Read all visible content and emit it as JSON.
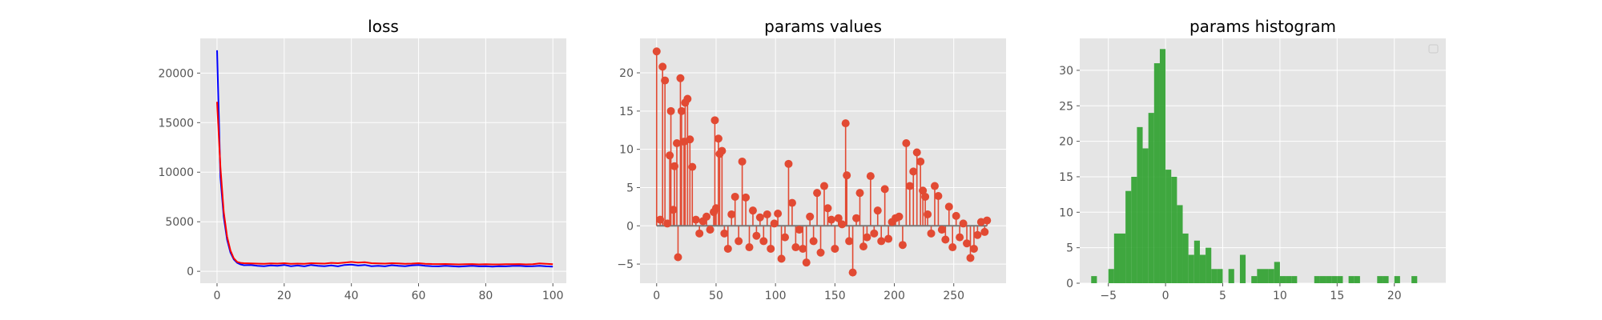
{
  "colors": {
    "axes_bg": "#e5e5e5",
    "grid": "#ffffff",
    "tick": "#555555",
    "loss_train": "#0000ff",
    "loss_val": "#ff0000",
    "stem": "#e24a33",
    "baseline": "#777777",
    "hist": "#2ca02c"
  },
  "chart_data": [
    {
      "type": "line",
      "title": "loss",
      "xlabel": "",
      "ylabel": "",
      "xlim": [
        -5,
        104
      ],
      "ylim": [
        -1200,
        23500
      ],
      "xticks": [
        0,
        20,
        40,
        60,
        80,
        100
      ],
      "yticks": [
        0,
        5000,
        10000,
        15000,
        20000
      ],
      "grid": true,
      "series": [
        {
          "color": "#0000ff",
          "x": [
            0,
            1,
            2,
            3,
            4,
            5,
            6,
            7,
            8,
            10,
            12,
            14,
            16,
            18,
            20,
            22,
            24,
            26,
            28,
            30,
            32,
            34,
            36,
            38,
            40,
            42,
            44,
            46,
            48,
            50,
            52,
            54,
            56,
            58,
            60,
            62,
            64,
            66,
            68,
            70,
            72,
            74,
            76,
            78,
            80,
            82,
            84,
            86,
            88,
            90,
            92,
            94,
            96,
            98,
            100
          ],
          "values": [
            22300,
            9500,
            5500,
            3200,
            1900,
            1200,
            850,
            700,
            620,
            640,
            560,
            520,
            600,
            560,
            640,
            520,
            580,
            500,
            640,
            560,
            520,
            600,
            500,
            640,
            680,
            580,
            640,
            520,
            560,
            500,
            620,
            560,
            520,
            600,
            640,
            560,
            520,
            500,
            560,
            520,
            480,
            520,
            560,
            500,
            520,
            480,
            520,
            500,
            540,
            560,
            500,
            520,
            560,
            500,
            480
          ]
        },
        {
          "color": "#ff0000",
          "x": [
            0,
            1,
            2,
            3,
            4,
            5,
            6,
            7,
            8,
            10,
            12,
            14,
            16,
            18,
            20,
            22,
            24,
            26,
            28,
            30,
            32,
            34,
            36,
            38,
            40,
            42,
            44,
            46,
            48,
            50,
            52,
            54,
            56,
            58,
            60,
            62,
            64,
            66,
            68,
            70,
            72,
            74,
            76,
            78,
            80,
            82,
            84,
            86,
            88,
            90,
            92,
            94,
            96,
            98,
            100
          ],
          "values": [
            17100,
            10500,
            6000,
            3500,
            2100,
            1300,
            950,
            850,
            820,
            800,
            780,
            760,
            800,
            780,
            820,
            760,
            780,
            760,
            820,
            800,
            780,
            850,
            820,
            880,
            950,
            880,
            920,
            820,
            800,
            780,
            820,
            790,
            760,
            780,
            820,
            760,
            740,
            730,
            740,
            720,
            700,
            720,
            730,
            700,
            720,
            700,
            700,
            710,
            720,
            730,
            700,
            720,
            800,
            760,
            720
          ]
        }
      ]
    },
    {
      "type": "stem",
      "title": "params values",
      "xlabel": "",
      "ylabel": "",
      "xlim": [
        -14,
        294
      ],
      "ylim": [
        -7.5,
        24.5
      ],
      "xticks": [
        0,
        50,
        100,
        150,
        200,
        250
      ],
      "yticks": [
        -5,
        0,
        5,
        10,
        15,
        20
      ],
      "grid": true,
      "x": [
        0,
        3,
        5,
        7,
        9,
        11,
        12,
        14,
        15,
        17,
        18,
        20,
        21,
        23,
        24,
        26,
        28,
        30,
        33,
        36,
        39,
        42,
        45,
        48,
        49,
        50,
        52,
        53,
        55,
        57,
        60,
        63,
        66,
        69,
        72,
        75,
        78,
        81,
        84,
        87,
        90,
        93,
        96,
        99,
        102,
        105,
        108,
        111,
        114,
        117,
        120,
        123,
        126,
        129,
        132,
        135,
        138,
        141,
        144,
        147,
        150,
        153,
        156,
        159,
        160,
        162,
        165,
        168,
        171,
        174,
        177,
        180,
        183,
        186,
        189,
        192,
        195,
        198,
        201,
        204,
        207,
        210,
        213,
        216,
        219,
        222,
        224,
        226,
        228,
        231,
        234,
        237,
        240,
        243,
        246,
        249,
        252,
        255,
        258,
        261,
        264,
        267,
        270,
        273,
        276,
        278
      ],
      "values": [
        22.8,
        0.8,
        20.8,
        19.0,
        0.3,
        9.2,
        15.0,
        2.1,
        7.8,
        10.8,
        -4.1,
        19.3,
        15.0,
        11.0,
        16.1,
        16.6,
        11.3,
        7.7,
        0.8,
        -1.0,
        0.6,
        1.2,
        -0.5,
        1.8,
        13.8,
        2.3,
        11.4,
        9.4,
        9.8,
        -1.0,
        -3.0,
        1.5,
        3.8,
        -2.0,
        8.4,
        3.7,
        -2.8,
        2.0,
        -1.3,
        1.1,
        -2.0,
        1.5,
        -3.0,
        0.3,
        1.6,
        -4.3,
        -1.5,
        8.1,
        3.0,
        -2.8,
        -0.5,
        -3.0,
        -4.8,
        1.2,
        -2.0,
        4.3,
        -3.5,
        5.2,
        2.3,
        0.8,
        -3.0,
        1.0,
        0.2,
        13.4,
        6.6,
        -2.0,
        -6.1,
        1.0,
        4.3,
        -2.7,
        -1.5,
        6.5,
        -1.0,
        2.0,
        -2.0,
        4.8,
        -1.7,
        0.5,
        1.0,
        1.2,
        -2.5,
        10.8,
        5.2,
        7.1,
        9.6,
        8.4,
        4.6,
        3.8,
        1.5,
        -1.0,
        5.2,
        3.9,
        -0.5,
        -1.8,
        2.5,
        -2.8,
        1.3,
        -1.5,
        0.3,
        -2.3,
        -4.2,
        -3.0,
        -1.2,
        0.5,
        -0.8,
        0.7
      ]
    },
    {
      "type": "bar",
      "title": "params histogram",
      "xlabel": "",
      "ylabel": "",
      "xlim": [
        -7.5,
        24.5
      ],
      "ylim": [
        0,
        34.5
      ],
      "xticks": [
        -5,
        0,
        5,
        10,
        15,
        20
      ],
      "yticks": [
        0,
        5,
        10,
        15,
        20,
        25,
        30
      ],
      "grid": true,
      "bin_width": 0.5,
      "legend": "top-right",
      "bins": [
        -6.5,
        -5.0,
        -4.5,
        -4.0,
        -3.5,
        -3.0,
        -2.5,
        -2.0,
        -1.5,
        -1.0,
        -0.5,
        0.0,
        0.5,
        1.0,
        1.5,
        2.0,
        2.5,
        3.0,
        3.5,
        4.0,
        4.5,
        5.5,
        6.5,
        7.5,
        8.0,
        8.5,
        9.0,
        9.5,
        10.0,
        10.5,
        11.0,
        13.0,
        13.5,
        14.0,
        14.5,
        15.0,
        16.0,
        16.5,
        18.5,
        19.0,
        20.0,
        21.5
      ],
      "values": [
        1,
        2,
        7,
        7,
        13,
        15,
        22,
        19,
        24,
        31,
        33,
        16,
        15,
        11,
        7,
        4,
        6,
        4,
        5,
        2,
        2,
        2,
        4,
        1,
        2,
        2,
        2,
        3,
        1,
        1,
        1,
        1,
        1,
        1,
        1,
        1,
        1,
        1,
        1,
        1,
        1,
        1
      ]
    }
  ]
}
